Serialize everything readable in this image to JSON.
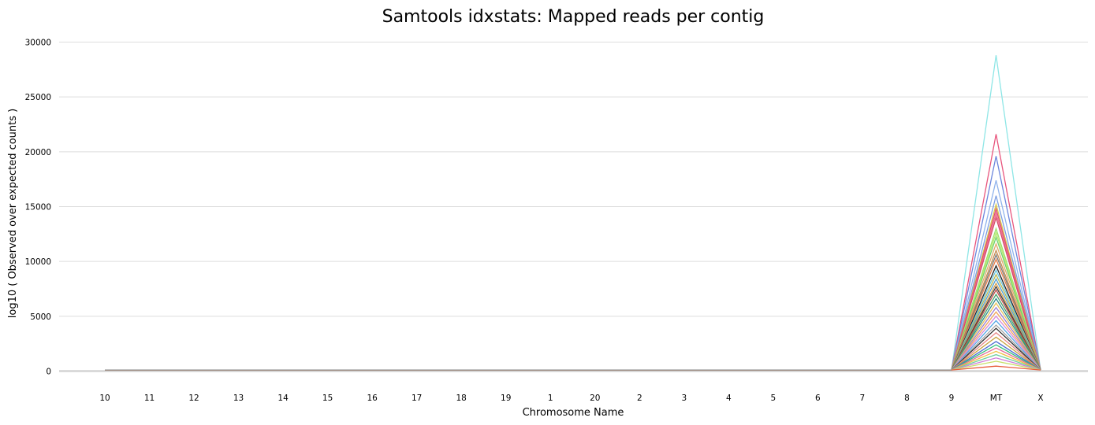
{
  "chart_data": {
    "type": "line",
    "title": "Samtools idxstats: Mapped reads per contig",
    "xlabel": "Chromosome Name",
    "ylabel": "log10 ( Observed over expected counts )",
    "categories": [
      "10",
      "11",
      "12",
      "13",
      "14",
      "15",
      "16",
      "17",
      "18",
      "19",
      "1",
      "20",
      "2",
      "3",
      "4",
      "5",
      "6",
      "7",
      "8",
      "9",
      "MT",
      "X"
    ],
    "ylim": [
      0,
      30000
    ],
    "yticks": [
      0,
      5000,
      10000,
      15000,
      20000,
      25000,
      30000
    ],
    "grid": true,
    "legend": "none",
    "baseline_value": 100,
    "series": [
      {
        "color": "#8ee6e6",
        "values": [
          100,
          100,
          100,
          100,
          100,
          100,
          100,
          100,
          100,
          100,
          100,
          100,
          100,
          100,
          100,
          100,
          100,
          100,
          100,
          100,
          28800,
          100
        ]
      },
      {
        "color": "#e8557d",
        "values": [
          100,
          100,
          100,
          100,
          100,
          100,
          100,
          100,
          100,
          100,
          100,
          100,
          100,
          100,
          100,
          100,
          100,
          100,
          100,
          100,
          21600,
          100
        ]
      },
      {
        "color": "#6b86dc",
        "values": [
          100,
          100,
          100,
          100,
          100,
          100,
          100,
          100,
          100,
          100,
          100,
          100,
          100,
          100,
          100,
          100,
          100,
          100,
          100,
          100,
          19600,
          100
        ]
      },
      {
        "color": "#8fb3ec",
        "values": [
          100,
          100,
          100,
          100,
          100,
          100,
          100,
          100,
          100,
          100,
          100,
          100,
          100,
          100,
          100,
          100,
          100,
          100,
          100,
          100,
          17400,
          100
        ]
      },
      {
        "color": "#7c9ee2",
        "values": [
          100,
          100,
          100,
          100,
          100,
          100,
          100,
          100,
          100,
          100,
          100,
          100,
          100,
          100,
          100,
          100,
          100,
          100,
          100,
          100,
          16000,
          100
        ]
      },
      {
        "color": "#d6c94a",
        "values": [
          100,
          100,
          100,
          100,
          100,
          100,
          100,
          100,
          100,
          100,
          100,
          100,
          100,
          100,
          100,
          100,
          100,
          100,
          100,
          100,
          15200,
          100
        ]
      },
      {
        "color": "#e04f74",
        "values": [
          100,
          100,
          100,
          100,
          100,
          100,
          100,
          100,
          100,
          100,
          100,
          100,
          100,
          100,
          100,
          100,
          100,
          100,
          100,
          100,
          14800,
          100
        ]
      },
      {
        "color": "#f06b8b",
        "values": [
          100,
          100,
          100,
          100,
          100,
          100,
          100,
          100,
          100,
          100,
          100,
          100,
          100,
          100,
          100,
          100,
          100,
          100,
          100,
          100,
          14400,
          100
        ]
      },
      {
        "color": "#d44a6a",
        "values": [
          100,
          100,
          100,
          100,
          100,
          100,
          100,
          100,
          100,
          100,
          100,
          100,
          100,
          100,
          100,
          100,
          100,
          100,
          100,
          100,
          14000,
          100
        ]
      },
      {
        "color": "#9be36b",
        "values": [
          100,
          100,
          100,
          100,
          100,
          100,
          100,
          100,
          100,
          100,
          100,
          100,
          100,
          100,
          100,
          100,
          100,
          100,
          100,
          100,
          13000,
          100
        ]
      },
      {
        "color": "#b8e86e",
        "values": [
          100,
          100,
          100,
          100,
          100,
          100,
          100,
          100,
          100,
          100,
          100,
          100,
          100,
          100,
          100,
          100,
          100,
          100,
          100,
          100,
          12600,
          100
        ]
      },
      {
        "color": "#6fd16b",
        "values": [
          100,
          100,
          100,
          100,
          100,
          100,
          100,
          100,
          100,
          100,
          100,
          100,
          100,
          100,
          100,
          100,
          100,
          100,
          100,
          100,
          12200,
          100
        ]
      },
      {
        "color": "#e0a96b",
        "values": [
          100,
          100,
          100,
          100,
          100,
          100,
          100,
          100,
          100,
          100,
          100,
          100,
          100,
          100,
          100,
          100,
          100,
          100,
          100,
          100,
          11600,
          100
        ]
      },
      {
        "color": "#c48b4f",
        "values": [
          100,
          100,
          100,
          100,
          100,
          100,
          100,
          100,
          100,
          100,
          100,
          100,
          100,
          100,
          100,
          100,
          100,
          100,
          100,
          100,
          11000,
          100
        ]
      },
      {
        "color": "#7a7a7a",
        "values": [
          100,
          100,
          100,
          100,
          100,
          100,
          100,
          100,
          100,
          100,
          100,
          100,
          100,
          100,
          100,
          100,
          100,
          100,
          100,
          100,
          10600,
          100
        ]
      },
      {
        "color": "#e87f4c",
        "values": [
          100,
          100,
          100,
          100,
          100,
          100,
          100,
          100,
          100,
          100,
          100,
          100,
          100,
          100,
          100,
          100,
          100,
          100,
          100,
          100,
          10200,
          100
        ]
      },
      {
        "color": "#222222",
        "values": [
          100,
          100,
          100,
          100,
          100,
          100,
          100,
          100,
          100,
          100,
          100,
          100,
          100,
          100,
          100,
          100,
          100,
          100,
          100,
          100,
          9600,
          100
        ]
      },
      {
        "color": "#6cc5e0",
        "values": [
          100,
          100,
          100,
          100,
          100,
          100,
          100,
          100,
          100,
          100,
          100,
          100,
          100,
          100,
          100,
          100,
          100,
          100,
          100,
          100,
          9200,
          100
        ]
      },
      {
        "color": "#b9b64f",
        "values": [
          100,
          100,
          100,
          100,
          100,
          100,
          100,
          100,
          100,
          100,
          100,
          100,
          100,
          100,
          100,
          100,
          100,
          100,
          100,
          100,
          8800,
          100
        ]
      },
      {
        "color": "#4f9ed1",
        "values": [
          100,
          100,
          100,
          100,
          100,
          100,
          100,
          100,
          100,
          100,
          100,
          100,
          100,
          100,
          100,
          100,
          100,
          100,
          100,
          100,
          8400,
          100
        ]
      },
      {
        "color": "#d9a04c",
        "values": [
          100,
          100,
          100,
          100,
          100,
          100,
          100,
          100,
          100,
          100,
          100,
          100,
          100,
          100,
          100,
          100,
          100,
          100,
          100,
          100,
          8000,
          100
        ]
      },
      {
        "color": "#3b3b3b",
        "values": [
          100,
          100,
          100,
          100,
          100,
          100,
          100,
          100,
          100,
          100,
          100,
          100,
          100,
          100,
          100,
          100,
          100,
          100,
          100,
          100,
          7700,
          100
        ]
      },
      {
        "color": "#c0504d",
        "values": [
          100,
          100,
          100,
          100,
          100,
          100,
          100,
          100,
          100,
          100,
          100,
          100,
          100,
          100,
          100,
          100,
          100,
          100,
          100,
          100,
          7400,
          100
        ]
      },
      {
        "color": "#4aa36a",
        "values": [
          100,
          100,
          100,
          100,
          100,
          100,
          100,
          100,
          100,
          100,
          100,
          100,
          100,
          100,
          100,
          100,
          100,
          100,
          100,
          100,
          7000,
          100
        ]
      },
      {
        "color": "#2e8b8b",
        "values": [
          100,
          100,
          100,
          100,
          100,
          100,
          100,
          100,
          100,
          100,
          100,
          100,
          100,
          100,
          100,
          100,
          100,
          100,
          100,
          100,
          6600,
          100
        ]
      },
      {
        "color": "#e6c35c",
        "values": [
          100,
          100,
          100,
          100,
          100,
          100,
          100,
          100,
          100,
          100,
          100,
          100,
          100,
          100,
          100,
          100,
          100,
          100,
          100,
          100,
          6200,
          100
        ]
      },
      {
        "color": "#9a7fd1",
        "values": [
          100,
          100,
          100,
          100,
          100,
          100,
          100,
          100,
          100,
          100,
          100,
          100,
          100,
          100,
          100,
          100,
          100,
          100,
          100,
          100,
          5800,
          100
        ]
      },
      {
        "color": "#f2a65a",
        "values": [
          100,
          100,
          100,
          100,
          100,
          100,
          100,
          100,
          100,
          100,
          100,
          100,
          100,
          100,
          100,
          100,
          100,
          100,
          100,
          100,
          5400,
          100
        ]
      },
      {
        "color": "#d98ad9",
        "values": [
          100,
          100,
          100,
          100,
          100,
          100,
          100,
          100,
          100,
          100,
          100,
          100,
          100,
          100,
          100,
          100,
          100,
          100,
          100,
          100,
          5000,
          100
        ]
      },
      {
        "color": "#5aa9e6",
        "values": [
          100,
          100,
          100,
          100,
          100,
          100,
          100,
          100,
          100,
          100,
          100,
          100,
          100,
          100,
          100,
          100,
          100,
          100,
          100,
          100,
          4600,
          100
        ]
      },
      {
        "color": "#a6a6a6",
        "values": [
          100,
          100,
          100,
          100,
          100,
          100,
          100,
          100,
          100,
          100,
          100,
          100,
          100,
          100,
          100,
          100,
          100,
          100,
          100,
          100,
          4200,
          100
        ]
      },
      {
        "color": "#333333",
        "values": [
          100,
          100,
          100,
          100,
          100,
          100,
          100,
          100,
          100,
          100,
          100,
          100,
          100,
          100,
          100,
          100,
          100,
          100,
          100,
          100,
          3900,
          100
        ]
      },
      {
        "color": "#e88a8a",
        "values": [
          100,
          100,
          100,
          100,
          100,
          100,
          100,
          100,
          100,
          100,
          100,
          100,
          100,
          100,
          100,
          100,
          100,
          100,
          100,
          100,
          3500,
          100
        ]
      },
      {
        "color": "#c9a33f",
        "values": [
          100,
          100,
          100,
          100,
          100,
          100,
          100,
          100,
          100,
          100,
          100,
          100,
          100,
          100,
          100,
          100,
          100,
          100,
          100,
          100,
          3100,
          100
        ]
      },
      {
        "color": "#4f6fd1",
        "values": [
          100,
          100,
          100,
          100,
          100,
          100,
          100,
          100,
          100,
          100,
          100,
          100,
          100,
          100,
          100,
          100,
          100,
          100,
          100,
          100,
          2700,
          100
        ]
      },
      {
        "color": "#2fbf7a",
        "values": [
          100,
          100,
          100,
          100,
          100,
          100,
          100,
          100,
          100,
          100,
          100,
          100,
          100,
          100,
          100,
          100,
          100,
          100,
          100,
          100,
          2400,
          100
        ]
      },
      {
        "color": "#e36d9a",
        "values": [
          100,
          100,
          100,
          100,
          100,
          100,
          100,
          100,
          100,
          100,
          100,
          100,
          100,
          100,
          100,
          100,
          100,
          100,
          100,
          100,
          2100,
          100
        ]
      },
      {
        "color": "#f0c040",
        "values": [
          100,
          100,
          100,
          100,
          100,
          100,
          100,
          100,
          100,
          100,
          100,
          100,
          100,
          100,
          100,
          100,
          100,
          100,
          100,
          100,
          1800,
          100
        ]
      },
      {
        "color": "#6fd0a0",
        "values": [
          100,
          100,
          100,
          100,
          100,
          100,
          100,
          100,
          100,
          100,
          100,
          100,
          100,
          100,
          100,
          100,
          100,
          100,
          100,
          100,
          1500,
          100
        ]
      },
      {
        "color": "#d07fd9",
        "values": [
          100,
          100,
          100,
          100,
          100,
          100,
          100,
          100,
          100,
          100,
          100,
          100,
          100,
          100,
          100,
          100,
          100,
          100,
          100,
          100,
          1200,
          100
        ]
      },
      {
        "color": "#c8e06a",
        "values": [
          100,
          100,
          100,
          100,
          100,
          100,
          100,
          100,
          100,
          100,
          100,
          100,
          100,
          100,
          100,
          100,
          100,
          100,
          100,
          100,
          900,
          100
        ]
      },
      {
        "color": "#e85c3c",
        "values": [
          100,
          100,
          100,
          100,
          100,
          100,
          100,
          100,
          100,
          100,
          100,
          100,
          100,
          100,
          100,
          100,
          100,
          100,
          100,
          100,
          450,
          100
        ]
      }
    ]
  }
}
